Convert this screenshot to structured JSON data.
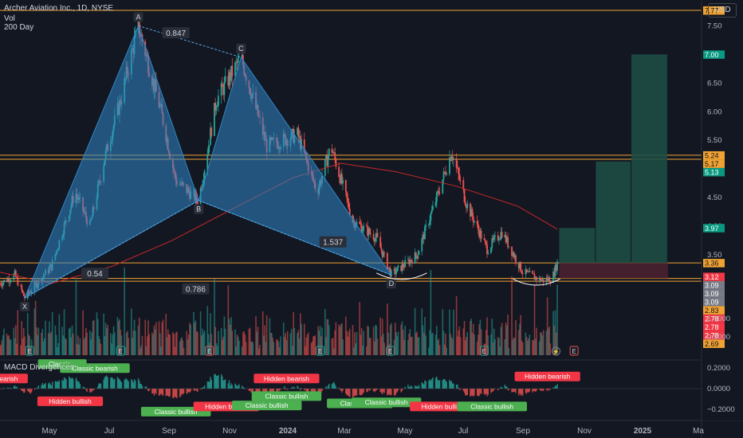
{
  "header": {
    "title": "Archer Aviation Inc., 1D, NYSE",
    "line2": "Vol",
    "line3": "200 Day",
    "currency": "USD"
  },
  "colors": {
    "background": "#131722",
    "up": "#26a69a",
    "down": "#ef5350",
    "pattern_fill": "#2f87c8",
    "orange_line": "#f0a232",
    "ma_line": "#c62828",
    "target_zone": "#1e4d45",
    "stop_zone": "#4a2030"
  },
  "chart_data": {
    "type": "candlestick",
    "price_axis": {
      "ticks": [
        {
          "value": 7.5,
          "label": "7.50"
        },
        {
          "value": 7.0,
          "label": "7.00"
        },
        {
          "value": 6.5,
          "label": "6.50"
        },
        {
          "value": 6.0,
          "label": "6.00"
        },
        {
          "value": 5.5,
          "label": "5.50"
        },
        {
          "value": 5.0,
          "label": "5.00"
        },
        {
          "value": 4.5,
          "label": "4.50"
        },
        {
          "value": 4.0,
          "label": "4.00"
        },
        {
          "value": 3.5,
          "label": "3.50"
        }
      ],
      "price_at_top": 7.95,
      "price_at_bottom": 2.5
    },
    "time_axis": {
      "labels": [
        "May",
        "Jul",
        "Sep",
        "Nov",
        "2024",
        "Mar",
        "May",
        "Jul",
        "Sep",
        "Nov",
        "2025",
        "Ma"
      ],
      "start": "2023-04-10",
      "end": "2025-03-20"
    },
    "price_tags": [
      {
        "value": 7.77,
        "label": "7.77",
        "color": "#f0a232"
      },
      {
        "value": 7.0,
        "label": "7.00",
        "color": "#089981"
      },
      {
        "value": 5.24,
        "label": "5.24",
        "color": "#f0a232"
      },
      {
        "value": 5.17,
        "label": "5.17",
        "color": "#f0a232"
      },
      {
        "value": 5.13,
        "label": "5.13",
        "color": "#089981"
      },
      {
        "value": 3.97,
        "label": "3.97",
        "color": "#089981"
      },
      {
        "value": 3.36,
        "label": "3.36",
        "color": "#f0a232"
      },
      {
        "value": 3.12,
        "label": "3.12",
        "color": "#f23645"
      },
      {
        "value": 3.09,
        "label": "3.09",
        "color": "#787b86"
      },
      {
        "value": 3.09,
        "label": "3.09",
        "color": "#787b86"
      },
      {
        "value": 3.09,
        "label": "3.09",
        "color": "#787b86"
      },
      {
        "value": 2.83,
        "label": "2.83",
        "color": "#f0a232"
      },
      {
        "value": 2.78,
        "label": "2.78",
        "color": "#f23645"
      },
      {
        "value": 2.78,
        "label": "2.78",
        "color": "#f23645"
      },
      {
        "value": 2.78,
        "label": "2.78",
        "color": "#f23645"
      },
      {
        "value": 2.69,
        "label": "2.69",
        "color": "#f0a232"
      }
    ],
    "horizontal_levels": [
      7.77,
      5.24,
      5.17,
      3.36,
      3.09,
      3.04
    ],
    "harmonic_pattern": {
      "points": [
        {
          "label": "X",
          "date": "2023-05-05",
          "price": 2.75
        },
        {
          "label": "A",
          "date": "2023-08-28",
          "price": 7.5
        },
        {
          "label": "B",
          "date": "2023-10-28",
          "price": 4.45
        },
        {
          "label": "C",
          "date": "2023-12-10",
          "price": 6.95
        },
        {
          "label": "D",
          "date": "2024-05-10",
          "price": 3.15
        }
      ],
      "ratios": [
        {
          "label": "0.847",
          "date": "2023-10-05",
          "price": 7.35
        },
        {
          "label": "0.54",
          "date": "2023-07-15",
          "price": 3.15
        },
        {
          "label": "1.537",
          "date": "2024-03-12",
          "price": 3.7
        },
        {
          "label": "0.786",
          "date": "2023-10-25",
          "price": 2.88
        }
      ]
    },
    "moving_average_200": [
      {
        "date": "2023-04-10",
        "price": 3.2
      },
      {
        "date": "2023-06-01",
        "price": 3.0
      },
      {
        "date": "2023-08-01",
        "price": 3.3
      },
      {
        "date": "2023-10-01",
        "price": 3.75
      },
      {
        "date": "2023-12-01",
        "price": 4.3
      },
      {
        "date": "2024-02-01",
        "price": 4.85
      },
      {
        "date": "2024-03-20",
        "price": 5.1
      },
      {
        "date": "2024-05-15",
        "price": 4.95
      },
      {
        "date": "2024-07-15",
        "price": 4.7
      },
      {
        "date": "2024-09-15",
        "price": 4.35
      },
      {
        "date": "2024-10-25",
        "price": 3.95
      }
    ],
    "price_path": [
      {
        "date": "2023-04-10",
        "price": 3.0
      },
      {
        "date": "2023-04-25",
        "price": 3.15
      },
      {
        "date": "2023-05-05",
        "price": 2.75
      },
      {
        "date": "2023-06-01",
        "price": 3.3
      },
      {
        "date": "2023-06-25",
        "price": 4.6
      },
      {
        "date": "2023-07-10",
        "price": 4.0
      },
      {
        "date": "2023-07-25",
        "price": 5.2
      },
      {
        "date": "2023-08-10",
        "price": 6.2
      },
      {
        "date": "2023-08-28",
        "price": 7.5
      },
      {
        "date": "2023-09-20",
        "price": 6.0
      },
      {
        "date": "2023-10-05",
        "price": 4.8
      },
      {
        "date": "2023-10-28",
        "price": 4.45
      },
      {
        "date": "2023-11-15",
        "price": 6.2
      },
      {
        "date": "2023-12-10",
        "price": 6.95
      },
      {
        "date": "2024-01-05",
        "price": 5.4
      },
      {
        "date": "2024-02-05",
        "price": 5.6
      },
      {
        "date": "2024-02-25",
        "price": 4.6
      },
      {
        "date": "2024-03-10",
        "price": 5.4
      },
      {
        "date": "2024-04-01",
        "price": 4.1
      },
      {
        "date": "2024-04-25",
        "price": 3.8
      },
      {
        "date": "2024-05-10",
        "price": 3.15
      },
      {
        "date": "2024-06-05",
        "price": 3.5
      },
      {
        "date": "2024-06-25",
        "price": 4.5
      },
      {
        "date": "2024-07-10",
        "price": 5.3
      },
      {
        "date": "2024-07-25",
        "price": 4.4
      },
      {
        "date": "2024-08-15",
        "price": 3.6
      },
      {
        "date": "2024-08-30",
        "price": 3.9
      },
      {
        "date": "2024-09-20",
        "price": 3.2
      },
      {
        "date": "2024-10-10",
        "price": 3.05
      },
      {
        "date": "2024-10-20",
        "price": 3.1
      },
      {
        "date": "2024-10-25",
        "price": 3.36
      }
    ],
    "rounded_bottoms": [
      {
        "date_from": "2024-04-25",
        "date_to": "2024-06-15",
        "price": 3.1
      },
      {
        "date_from": "2024-09-10",
        "date_to": "2024-10-28",
        "price": 3.0
      }
    ],
    "projection": {
      "stop_zone": {
        "from": 3.09,
        "to": 3.36
      },
      "target_boxes": [
        {
          "date_from": "2024-10-27",
          "date_to": "2024-12-03",
          "top": 3.97
        },
        {
          "date_from": "2024-12-03",
          "date_to": "2025-01-08",
          "top": 5.13
        },
        {
          "date_from": "2025-01-08",
          "date_to": "2025-02-14",
          "top": 7.0
        }
      ]
    },
    "volume_axis": {
      "ticks": [
        {
          "value": 1.0,
          "label": "1.0000"
        },
        {
          "value": 0.5,
          "label": "0.5000"
        }
      ]
    },
    "earnings_markers": [
      "2023-05-10",
      "2023-08-10",
      "2023-11-08",
      "2024-02-28",
      "2024-05-09",
      "2024-08-12",
      "2024-11-11"
    ],
    "earnings_label": "E",
    "macd": {
      "title": "MACD Divergences",
      "ticks": [
        {
          "value": 0.2,
          "label": "0.2000"
        },
        {
          "value": 0.0,
          "label": "0.0000"
        },
        {
          "value": -0.2,
          "label": "−0.2000"
        }
      ],
      "signals": [
        {
          "text": "Hidden bearish",
          "kind": "bearish",
          "date": "2023-04-05",
          "level": 0.09
        },
        {
          "text": "Classic...",
          "kind": "bullish",
          "date": "2023-06-12",
          "level": 0.23
        },
        {
          "text": "Classic bearish",
          "kind": "bullish",
          "date": "2023-07-15",
          "level": 0.19
        },
        {
          "text": "Hidden bullish",
          "kind": "bearish",
          "date": "2023-06-20",
          "level": -0.13
        },
        {
          "text": "Classic bullish",
          "kind": "bullish",
          "date": "2023-10-05",
          "level": -0.23
        },
        {
          "text": "Hidden bullish",
          "kind": "bearish",
          "date": "2023-11-25",
          "level": -0.18
        },
        {
          "text": "Classic bullish",
          "kind": "bullish",
          "date": "2024-01-05",
          "level": -0.17
        },
        {
          "text": "Hidden bearish",
          "kind": "bearish",
          "date": "2024-01-25",
          "level": 0.09
        },
        {
          "text": "Classic bullish",
          "kind": "bullish",
          "date": "2024-01-25",
          "level": -0.08
        },
        {
          "text": "Classic bullis",
          "kind": "bullish",
          "date": "2024-04-08",
          "level": -0.15
        },
        {
          "text": "Classic bullish",
          "kind": "bullish",
          "date": "2024-05-05",
          "level": -0.14
        },
        {
          "text": "Hidden bullish",
          "kind": "bearish",
          "date": "2024-07-01",
          "level": -0.18
        },
        {
          "text": "Classic bullish",
          "kind": "bullish",
          "date": "2024-08-20",
          "level": -0.18
        },
        {
          "text": "Hidden bearish",
          "kind": "bearish",
          "date": "2024-10-15",
          "level": 0.11
        }
      ]
    }
  }
}
